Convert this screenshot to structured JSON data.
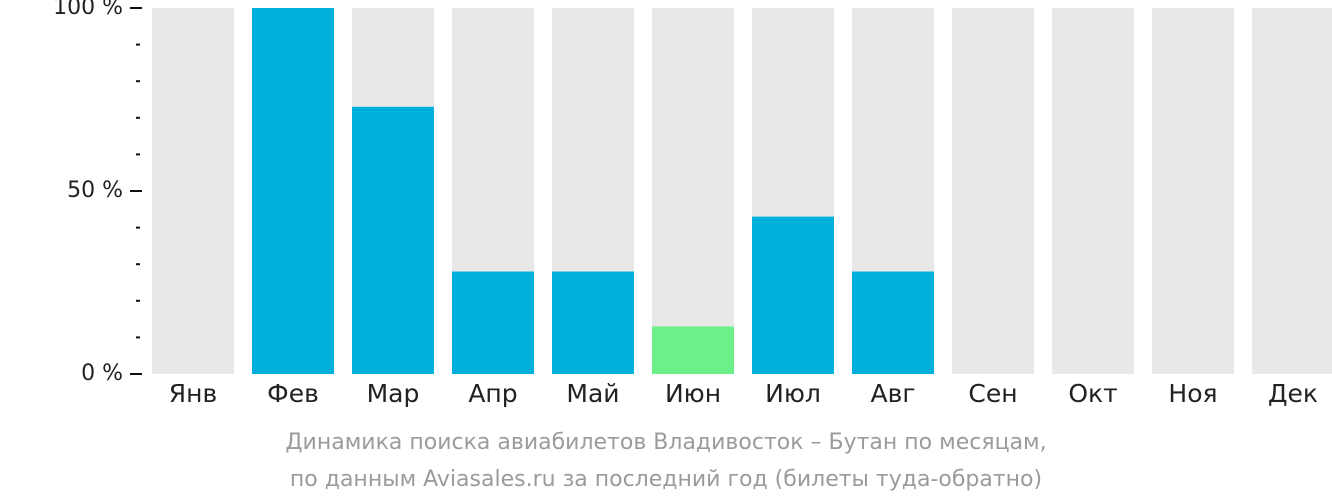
{
  "chart_data": {
    "type": "bar",
    "categories": [
      "Янв",
      "Фев",
      "Мар",
      "Апр",
      "Май",
      "Июн",
      "Июл",
      "Авг",
      "Сен",
      "Окт",
      "Ноя",
      "Дек"
    ],
    "values": [
      0,
      100,
      73,
      28,
      28,
      13,
      43,
      28,
      0,
      0,
      0,
      0
    ],
    "ylim": [
      0,
      100
    ],
    "y_ticks": [
      {
        "value": 0,
        "label": "0 %"
      },
      {
        "value": 50,
        "label": "50 %"
      },
      {
        "value": 100,
        "label": "100 %"
      }
    ],
    "minor_ticks_between_labels": 4,
    "colors": {
      "background_bar": "#e8e8e8",
      "normal_bar": "#00b0dc",
      "highlight_bar": "#6cf08a"
    },
    "highlight_categories": [
      "Июн"
    ]
  },
  "caption": {
    "line1": "Динамика поиска авиабилетов Владивосток – Бутан по месяцам,",
    "line2": "по данным Aviasales.ru за последний год (билеты туда-обратно)"
  }
}
